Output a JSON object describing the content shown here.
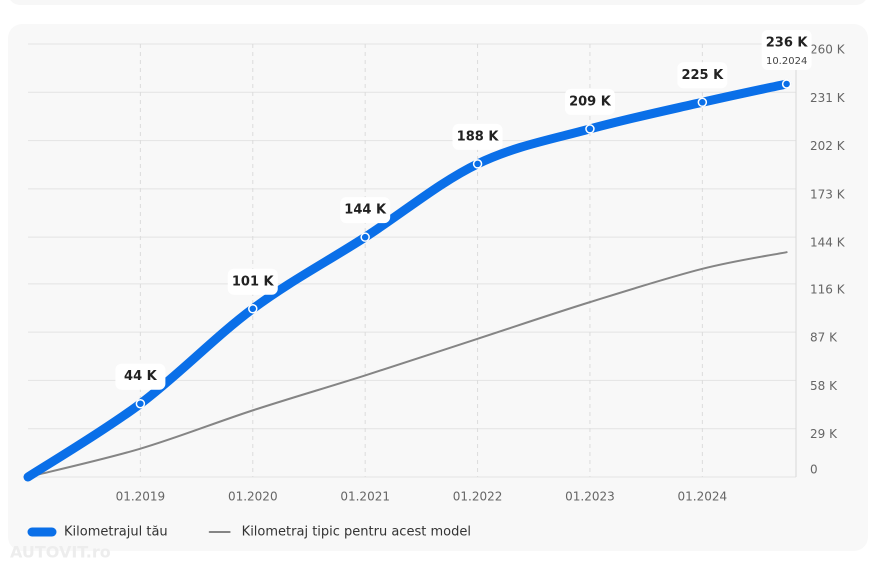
{
  "chart_data": {
    "type": "line",
    "x": [
      "01.2018",
      "01.2019",
      "01.2020",
      "01.2021",
      "01.2022",
      "01.2023",
      "01.2024",
      "10.2024"
    ],
    "xlim": [
      "01.2018",
      "11.2024"
    ],
    "xticks": [
      "01.2019",
      "01.2020",
      "01.2021",
      "01.2022",
      "01.2023",
      "01.2024"
    ],
    "ylim": [
      0,
      260
    ],
    "yticks": [
      0,
      {
        "value": 29,
        "label": "29 K"
      },
      {
        "value": 58,
        "label": "58 K"
      },
      {
        "value": 87,
        "label": "87 K"
      },
      {
        "value": 116,
        "label": "116 K"
      },
      {
        "value": 144,
        "label": "144 K"
      },
      {
        "value": 173,
        "label": "173 K"
      },
      {
        "value": 202,
        "label": "202 K"
      },
      {
        "value": 231,
        "label": "231 K"
      },
      {
        "value": 260,
        "label": "260 K"
      }
    ],
    "grid": true,
    "series": [
      {
        "name": "Kilometrajul tău",
        "color": "#0a6fe8",
        "values": [
          0,
          44,
          101,
          144,
          188,
          209,
          225,
          236
        ],
        "value_labels": [
          null,
          "44 K",
          "101 K",
          "144 K",
          "188 K",
          "209 K",
          "225 K",
          "236 K"
        ]
      },
      {
        "name": "Kilometraj tipic pentru acest model",
        "color": "#858585",
        "values": [
          0,
          17,
          40,
          61,
          83,
          105,
          125,
          135
        ]
      }
    ],
    "watermark": "AUTOVIT.ro"
  }
}
